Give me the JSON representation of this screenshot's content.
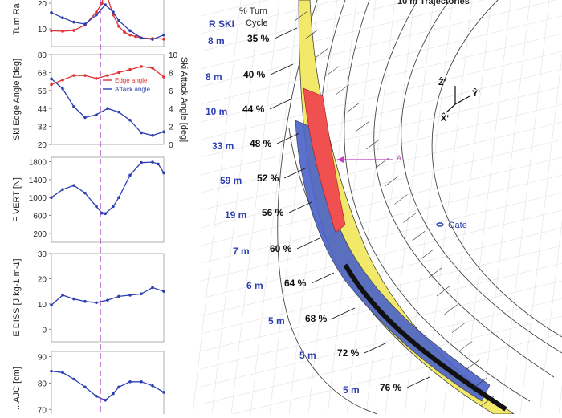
{
  "chart_data": [
    {
      "type": "line",
      "ylabel": "Turn Ra",
      "yticks": [
        "20",
        "10"
      ],
      "series": [
        {
          "name": "",
          "color": "#e03030",
          "x": [
            0,
            10,
            20,
            30,
            40,
            45,
            48,
            50,
            55,
            60,
            65,
            70,
            75,
            80,
            90,
            100
          ],
          "y": [
            8.5,
            8.3,
            8.6,
            10.5,
            15,
            18,
            24,
            20,
            14,
            10,
            8,
            7,
            6.5,
            6,
            5.8,
            5.6
          ]
        },
        {
          "name": "",
          "color": "#2d3fb0",
          "x": [
            0,
            10,
            20,
            30,
            40,
            48,
            55,
            60,
            70,
            80,
            90,
            100
          ],
          "y": [
            14.8,
            13,
            11.5,
            10.8,
            14,
            17.5,
            15,
            12,
            8.5,
            6,
            5.5,
            7
          ]
        }
      ]
    },
    {
      "type": "line",
      "ylabel": "Ski Edge Angle [deg]",
      "ylabel2": "Ski Attack Angle [deg]",
      "ylim": [
        20,
        80
      ],
      "yticks": [
        "80",
        "68",
        "56",
        "44",
        "32",
        "20"
      ],
      "yticks2": [
        "10",
        "8",
        "6",
        "4",
        "2",
        "0"
      ],
      "legend": [
        "Edge angle",
        "Attack angle"
      ],
      "series": [
        {
          "name": "Edge angle",
          "color": "#e03030",
          "x": [
            0,
            10,
            20,
            30,
            40,
            50,
            60,
            70,
            80,
            90,
            100
          ],
          "y": [
            60,
            63,
            66,
            66,
            64,
            66,
            68,
            70,
            72,
            71,
            65
          ]
        },
        {
          "name": "Attack angle",
          "color": "#2d3fb0",
          "x": [
            0,
            10,
            20,
            30,
            40,
            50,
            60,
            70,
            80,
            90,
            100
          ],
          "y": [
            7.3,
            6.2,
            4.2,
            3,
            3.3,
            4,
            3.6,
            2.7,
            1.3,
            1,
            1.4
          ]
        }
      ]
    },
    {
      "type": "line",
      "ylabel": "F VERT [N]",
      "ylim": [
        0,
        1900
      ],
      "yticks": [
        "1800",
        "1400",
        "1000",
        "600",
        "200"
      ],
      "series": [
        {
          "name": "",
          "color": "#2d3fb0",
          "x": [
            0,
            10,
            20,
            30,
            40,
            45,
            48,
            55,
            60,
            70,
            80,
            90,
            95,
            100
          ],
          "y": [
            1000,
            1180,
            1270,
            1100,
            800,
            650,
            640,
            800,
            1000,
            1500,
            1780,
            1790,
            1750,
            1550
          ]
        }
      ]
    },
    {
      "type": "line",
      "ylabel": "E DISS [J kg-1 m-1]",
      "ylim": [
        -5,
        30
      ],
      "yticks": [
        "30",
        "20",
        "10",
        "0"
      ],
      "series": [
        {
          "name": "",
          "color": "#2d3fb0",
          "x": [
            0,
            10,
            20,
            30,
            40,
            50,
            60,
            70,
            80,
            90,
            100
          ],
          "y": [
            9.5,
            13.5,
            12,
            11,
            10.5,
            11.5,
            13,
            13.5,
            14,
            16.5,
            15
          ]
        }
      ]
    },
    {
      "type": "line",
      "ylabel": "...AJC [cm]",
      "ylim": [
        64,
        92
      ],
      "yticks": [
        "90",
        "80",
        "70"
      ],
      "series": [
        {
          "name": "",
          "color": "#2d3fb0",
          "x": [
            0,
            10,
            20,
            30,
            40,
            48,
            55,
            60,
            70,
            80,
            90,
            100
          ],
          "y": [
            84.5,
            84,
            81.5,
            78.5,
            75,
            73.5,
            76,
            78.5,
            80.5,
            80.5,
            79,
            76.5
          ]
        }
      ]
    }
  ],
  "diagram": {
    "title": "10 m Trajectories",
    "rski_header": "R SKI",
    "pct_header_line1": "% Turn",
    "pct_header_line2": "Cycle",
    "rows": [
      {
        "r": "8 m",
        "pct": "35 %"
      },
      {
        "r": "8 m",
        "pct": "40 %"
      },
      {
        "r": "10 m",
        "pct": "44 %"
      },
      {
        "r": "33 m",
        "pct": "48 %"
      },
      {
        "r": "59 m",
        "pct": "52 %"
      },
      {
        "r": "19 m",
        "pct": "56 %"
      },
      {
        "r": "7 m",
        "pct": "60 %"
      },
      {
        "r": "6 m",
        "pct": "64 %"
      },
      {
        "r": "5 m",
        "pct": "68 %"
      },
      {
        "r": "5 m",
        "pct": "72 %"
      },
      {
        "r": "5 m",
        "pct": "76 %"
      }
    ],
    "marker_label": "A.",
    "gate_label": "Gate",
    "axis_z": "Ẑ'",
    "axis_y": "Ŷ'",
    "axis_x": "X̂'"
  }
}
